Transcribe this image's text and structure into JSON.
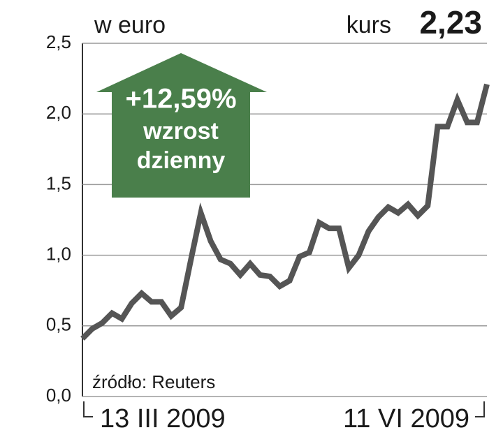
{
  "chart_data": {
    "type": "line",
    "title": "w euro",
    "price_label": "kurs",
    "price_value": "2,23",
    "source": "źródło: Reuters",
    "annotation": {
      "change": "+12,59%",
      "line1": "wzrost",
      "line2": "dzienny"
    },
    "categories": [
      "13 III 2009",
      null,
      null,
      null,
      null,
      null,
      null,
      null,
      null,
      null,
      null,
      null,
      null,
      null,
      null,
      null,
      null,
      null,
      null,
      null,
      null,
      null,
      null,
      null,
      null,
      null,
      null,
      null,
      null,
      null,
      null,
      null,
      null,
      null,
      null,
      null,
      null,
      null,
      null,
      null,
      null,
      "11 VI 2009"
    ],
    "series": [
      {
        "name": null,
        "color": "#555555",
        "values": [
          0.41,
          0.48,
          0.52,
          0.59,
          0.55,
          0.66,
          0.73,
          0.67,
          0.67,
          0.57,
          0.63,
          0.97,
          1.3,
          1.1,
          0.97,
          0.94,
          0.86,
          0.94,
          0.86,
          0.85,
          0.78,
          0.82,
          0.99,
          1.02,
          1.23,
          1.19,
          1.19,
          0.91,
          1.0,
          1.17,
          1.27,
          1.34,
          1.3,
          1.36,
          1.28,
          1.35,
          1.91,
          1.91,
          2.1,
          1.94,
          1.94,
          2.21
        ]
      }
    ],
    "ylim": [
      0,
      2.5
    ],
    "yticks": [
      {
        "value": 0,
        "label": "0,0"
      },
      {
        "value": 0.5,
        "label": "0,5"
      },
      {
        "value": 1,
        "label": "1,0"
      },
      {
        "value": 1.5,
        "label": "1,5"
      },
      {
        "value": 2,
        "label": "2,0"
      },
      {
        "value": 2.5,
        "label": "2,5"
      }
    ],
    "grid": true,
    "annotation_color": "#4a7f4b"
  }
}
